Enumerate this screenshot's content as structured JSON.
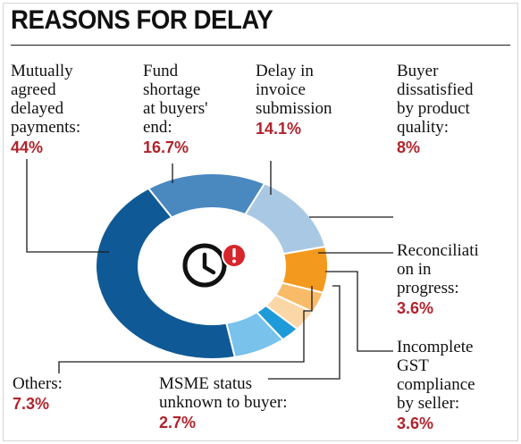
{
  "chart_data": {
    "type": "pie",
    "title": "REASONS FOR DELAY",
    "slices": [
      {
        "label": "Mutually agreed delayed payments:",
        "value": 44,
        "display": "44%",
        "color": "#0f5a96"
      },
      {
        "label": "Fund shortage at buyers' end:",
        "value": 16.7,
        "display": "16.7%",
        "color": "#4a88c0"
      },
      {
        "label": "Delay in invoice submission",
        "value": 14.1,
        "display": "14.1%",
        "color": "#a9c8e3"
      },
      {
        "label": "Buyer dissatisfied by product quality:",
        "value": 8,
        "display": "8%",
        "color": "#f39a1e"
      },
      {
        "label": "Reconciliation in progress:",
        "value": 3.6,
        "display": "3.6%",
        "color": "#f8bb68"
      },
      {
        "label": "Incomplete GST compliance by seller:",
        "value": 3.6,
        "display": "3.6%",
        "color": "#fbd6a6"
      },
      {
        "label": "MSME status unknown to buyer:",
        "value": 2.7,
        "display": "2.7%",
        "color": "#1e9ad8"
      },
      {
        "label": "Others:",
        "value": 7.3,
        "display": "7.3%",
        "color": "#78c2ec"
      }
    ]
  },
  "labels": {
    "mutual": {
      "text": "Mutually\nagreed\ndelayed\npayments:",
      "value": "44%"
    },
    "fund": {
      "text": "Fund\nshortage\nat buyers'\nend:",
      "value": "16.7%"
    },
    "invoice": {
      "text": "Delay in\ninvoice\nsubmission",
      "value": "14.1%"
    },
    "quality": {
      "text": "Buyer\ndissatisfied\nby product\nquality:",
      "value": "8%"
    },
    "reconciliation": {
      "text": "Reconciliati\non in\nprogress:",
      "value": "3.6%"
    },
    "gst": {
      "text": "Incomplete\nGST\ncompliance\nby seller:",
      "value": "3.6%"
    },
    "msme": {
      "text": "MSME status\nunknown to buyer:",
      "value": "2.7%"
    },
    "others": {
      "text": "Others:",
      "value": "7.3%"
    }
  },
  "icons": {
    "center": "clock-alert-icon"
  },
  "colors": {
    "accent": "#b0242c",
    "alert": "#d7262b"
  }
}
